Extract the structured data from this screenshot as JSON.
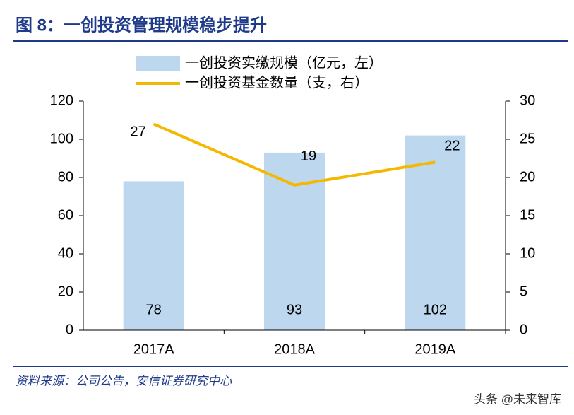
{
  "chart_data": {
    "type": "bar-line",
    "title": "图 8：一创投资管理规模稳步提升",
    "categories": [
      "2017A",
      "2018A",
      "2019A"
    ],
    "series": [
      {
        "name": "一创投资实缴规模（亿元，左）",
        "type": "bar",
        "color": "#bdd7ee",
        "values": [
          78,
          93,
          102
        ]
      },
      {
        "name": "一创投资基金数量（支，右）",
        "type": "line",
        "color": "#f5b800",
        "axis": "y2",
        "values": [
          27,
          19,
          22
        ]
      }
    ],
    "ylim": [
      0,
      120
    ],
    "yticks": [
      0,
      20,
      40,
      60,
      80,
      100,
      120
    ],
    "y2lim": [
      0,
      30
    ],
    "y2ticks": [
      0,
      5,
      10,
      15,
      20,
      25,
      30
    ],
    "legend": "top",
    "source": "资料来源：公司公告，安信证券研究中心"
  },
  "watermark": "头条 @未来智库"
}
